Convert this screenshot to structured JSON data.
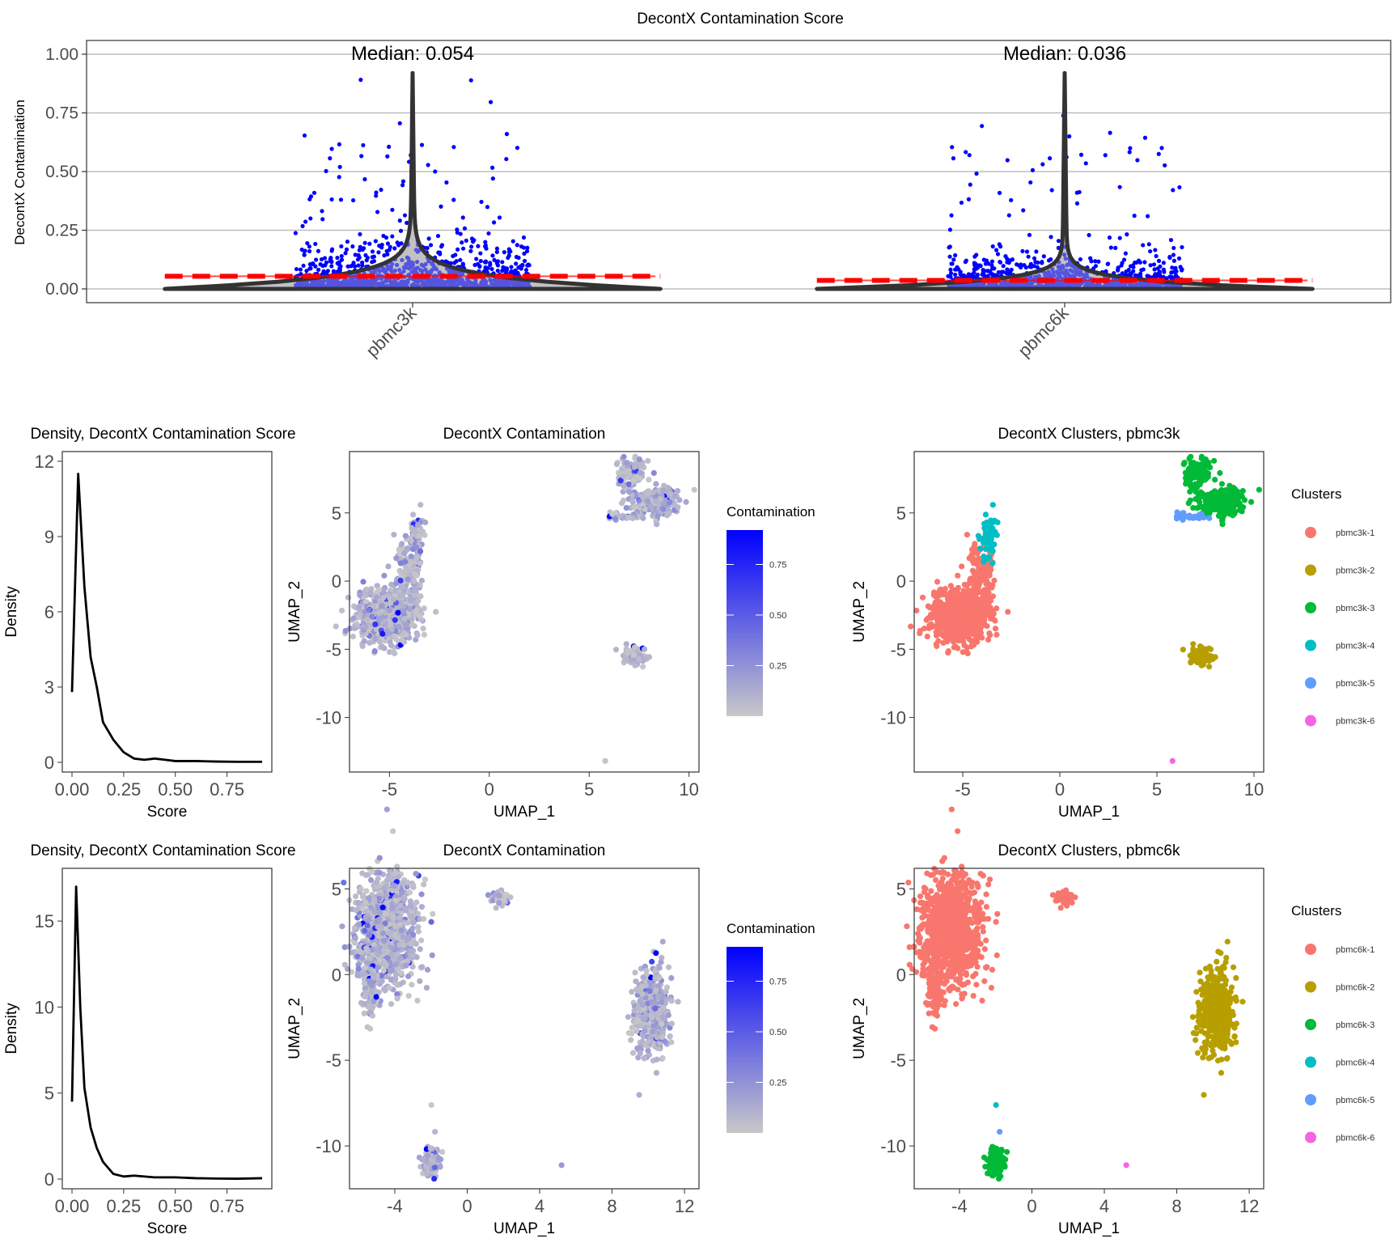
{
  "colors": {
    "violin_fill": "#c8c8c8",
    "violin_outline": "#333333",
    "points": "#0000ff",
    "median_line": "#ff0000",
    "density_line": "#000000",
    "contamination_low": "#c8c8c8",
    "contamination_high": "#0000ff",
    "grid": "#bebebe"
  },
  "chart_data": [
    {
      "type": "violin",
      "title": "DecontX Contamination Score",
      "ylabel": "DecontX Contamination",
      "xlabel": "",
      "ylim": [
        0,
        1
      ],
      "yticks": [
        "0.00",
        "0.25",
        "0.50",
        "0.75",
        "1.00"
      ],
      "categories": [
        "pbmc3k",
        "pbmc6k"
      ],
      "medians": [
        0.054,
        0.036
      ],
      "median_labels": [
        "Median: 0.054",
        "Median: 0.036"
      ],
      "max_values": [
        0.92,
        0.92
      ],
      "point_color": "blue",
      "grid": "horizontal"
    },
    {
      "type": "line",
      "title": "Density, DecontX Contamination Score",
      "xlabel": "Score",
      "ylabel": "Density",
      "xlim": [
        0,
        0.92
      ],
      "ylim": [
        0,
        12
      ],
      "xticks": [
        "0.00",
        "0.25",
        "0.50",
        "0.75"
      ],
      "yticks": [
        "0",
        "3",
        "6",
        "9",
        "12"
      ],
      "x": [
        0.0,
        0.03,
        0.06,
        0.09,
        0.12,
        0.15,
        0.2,
        0.25,
        0.3,
        0.35,
        0.4,
        0.45,
        0.5,
        0.6,
        0.7,
        0.8,
        0.92
      ],
      "y": [
        2.8,
        11.5,
        7.0,
        4.2,
        3.0,
        1.6,
        0.9,
        0.4,
        0.15,
        0.1,
        0.15,
        0.1,
        0.05,
        0.05,
        0.03,
        0.02,
        0.02
      ]
    },
    {
      "type": "scatter",
      "title": "DecontX Contamination",
      "xlabel": "UMAP_1",
      "ylabel": "UMAP_2",
      "xlim": [
        -7,
        10.5
      ],
      "ylim": [
        -14,
        9.5
      ],
      "xticks": [
        "-5",
        "0",
        "5",
        "10"
      ],
      "yticks": [
        "5",
        "0",
        "-5",
        "-10"
      ],
      "legend": {
        "title": "Contamination",
        "type": "gradient",
        "ticks": [
          "0.75",
          "0.50",
          "0.25"
        ],
        "position": "right"
      }
    },
    {
      "type": "scatter",
      "title": "DecontX Clusters, pbmc3k",
      "xlabel": "UMAP_1",
      "ylabel": "UMAP_2",
      "xlim": [
        -7.5,
        10.5
      ],
      "ylim": [
        -14,
        9.5
      ],
      "xticks": [
        "-5",
        "0",
        "5",
        "10"
      ],
      "yticks": [
        "5",
        "0",
        "-5",
        "-10"
      ],
      "legend": {
        "title": "Clusters",
        "position": "right",
        "entries": [
          {
            "label": "pbmc3k-1",
            "color": "#F8766D"
          },
          {
            "label": "pbmc3k-2",
            "color": "#B79F00"
          },
          {
            "label": "pbmc3k-3",
            "color": "#00BA38"
          },
          {
            "label": "pbmc3k-4",
            "color": "#00BFC4"
          },
          {
            "label": "pbmc3k-5",
            "color": "#619CFF"
          },
          {
            "label": "pbmc3k-6",
            "color": "#F564E3"
          }
        ]
      }
    },
    {
      "type": "line",
      "title": "Density, DecontX Contamination Score",
      "xlabel": "Score",
      "ylabel": "Density",
      "xlim": [
        0,
        0.92
      ],
      "ylim": [
        0,
        17.5
      ],
      "xticks": [
        "0.00",
        "0.25",
        "0.50",
        "0.75"
      ],
      "yticks": [
        "0",
        "5",
        "10",
        "15"
      ],
      "x": [
        0.0,
        0.02,
        0.04,
        0.06,
        0.09,
        0.12,
        0.15,
        0.2,
        0.25,
        0.3,
        0.4,
        0.5,
        0.6,
        0.7,
        0.8,
        0.92
      ],
      "y": [
        4.5,
        17.0,
        10.0,
        5.3,
        3.0,
        1.8,
        1.0,
        0.3,
        0.15,
        0.2,
        0.1,
        0.1,
        0.05,
        0.03,
        0.02,
        0.05
      ]
    },
    {
      "type": "scatter",
      "title": "DecontX Contamination",
      "xlabel": "UMAP_1",
      "ylabel": "UMAP_2",
      "xlim": [
        -6.5,
        12.8
      ],
      "ylim": [
        -12.5,
        6.2
      ],
      "xticks": [
        "-4",
        "0",
        "4",
        "8",
        "12"
      ],
      "yticks": [
        "5",
        "0",
        "-5",
        "-10"
      ],
      "legend": {
        "title": "Contamination",
        "type": "gradient",
        "ticks": [
          "0.75",
          "0.50",
          "0.25"
        ],
        "position": "right"
      }
    },
    {
      "type": "scatter",
      "title": "DecontX Clusters, pbmc6k",
      "xlabel": "UMAP_1",
      "ylabel": "UMAP_2",
      "xlim": [
        -6.5,
        12.8
      ],
      "ylim": [
        -12.5,
        6.2
      ],
      "xticks": [
        "-4",
        "0",
        "4",
        "8",
        "12"
      ],
      "yticks": [
        "5",
        "0",
        "-5",
        "-10"
      ],
      "legend": {
        "title": "Clusters",
        "position": "right",
        "entries": [
          {
            "label": "pbmc6k-1",
            "color": "#F8766D"
          },
          {
            "label": "pbmc6k-2",
            "color": "#B79F00"
          },
          {
            "label": "pbmc6k-3",
            "color": "#00BA38"
          },
          {
            "label": "pbmc6k-4",
            "color": "#00BFC4"
          },
          {
            "label": "pbmc6k-5",
            "color": "#619CFF"
          },
          {
            "label": "pbmc6k-6",
            "color": "#F564E3"
          }
        ]
      }
    }
  ]
}
